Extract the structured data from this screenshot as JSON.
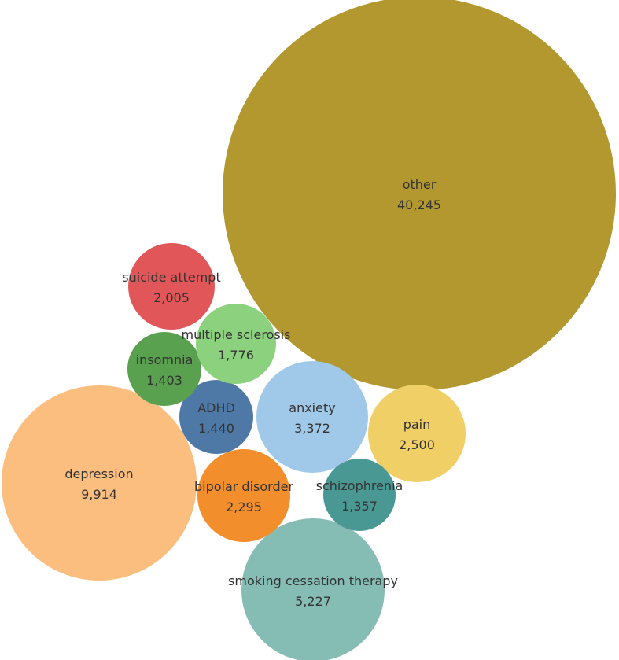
{
  "chart_data": {
    "type": "bubble",
    "title": "",
    "items": [
      {
        "label": "other",
        "value": 40245,
        "display": "40,245",
        "color": "#b2982e"
      },
      {
        "label": "depression",
        "value": 9914,
        "display": "9,914",
        "color": "#fcbe7f"
      },
      {
        "label": "smoking cessation therapy",
        "value": 5227,
        "display": "5,227",
        "color": "#85bdb5"
      },
      {
        "label": "anxiety",
        "value": 3372,
        "display": "3,372",
        "color": "#a0c8e8"
      },
      {
        "label": "pain",
        "value": 2500,
        "display": "2,500",
        "color": "#efcf66"
      },
      {
        "label": "bipolar disorder",
        "value": 2295,
        "display": "2,295",
        "color": "#f28e2c"
      },
      {
        "label": "suicide attempt",
        "value": 2005,
        "display": "2,005",
        "color": "#e15759"
      },
      {
        "label": "multiple sclerosis",
        "value": 1776,
        "display": "1,776",
        "color": "#8cd17d"
      },
      {
        "label": "ADHD",
        "value": 1440,
        "display": "1,440",
        "color": "#4e79a7"
      },
      {
        "label": "insomnia",
        "value": 1403,
        "display": "1,403",
        "color": "#59a14f"
      },
      {
        "label": "schizophrenia",
        "value": 1357,
        "display": "1,357",
        "color": "#499894"
      }
    ]
  }
}
